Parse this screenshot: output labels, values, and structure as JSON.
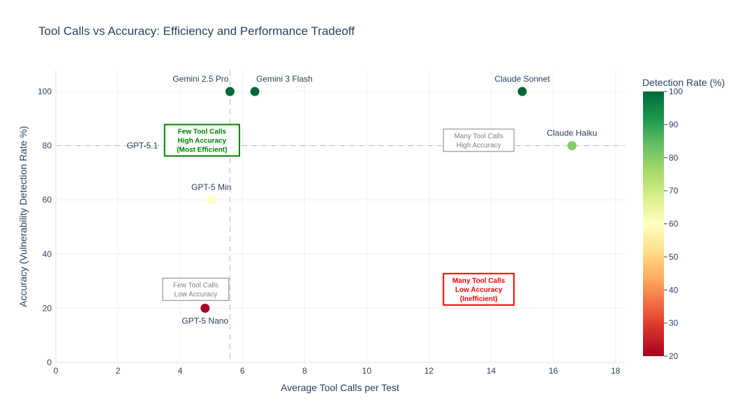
{
  "chart_data": {
    "type": "scatter",
    "title": "Tool Calls vs Accuracy: Efficiency and Performance Tradeoff",
    "xlabel": "Average Tool Calls per Test",
    "ylabel": "Accuracy (Vulnerability Detection Rate %)",
    "xlim": [
      0,
      18.3
    ],
    "ylim": [
      0,
      108
    ],
    "x_ticks": [
      0,
      2,
      4,
      6,
      8,
      10,
      12,
      14,
      16,
      18
    ],
    "y_ticks": [
      0,
      20,
      40,
      60,
      80,
      100
    ],
    "grid": true,
    "points": [
      {
        "label": "Gemini 2.5 Pro",
        "x": 5.6,
        "y": 100,
        "color_value": 100
      },
      {
        "label": "Gemini 3 Flash",
        "x": 6.4,
        "y": 100,
        "color_value": 100
      },
      {
        "label": "Claude Sonnet",
        "x": 15.0,
        "y": 100,
        "color_value": 100
      },
      {
        "label": "Claude Haiku",
        "x": 16.6,
        "y": 80,
        "color_value": 80
      },
      {
        "label": "GPT-5.1",
        "x": 4.0,
        "y": 80,
        "color_value": 80
      },
      {
        "label": "GPT-5 Min",
        "x": 5.0,
        "y": 60,
        "color_value": 60
      },
      {
        "label": "GPT-5 Nano",
        "x": 4.8,
        "y": 20,
        "color_value": 20
      }
    ],
    "reference_lines": {
      "x": 5.6,
      "y": 80
    },
    "colorbar": {
      "title": "Detection Rate (%)",
      "range": [
        20,
        100
      ],
      "ticks": [
        20,
        30,
        40,
        50,
        60,
        70,
        80,
        90,
        100
      ],
      "colorscale": "RdYlGn"
    },
    "annotations": [
      {
        "lines": [
          "Few Tool Calls",
          "High Accuracy",
          "(Most Efficient)"
        ],
        "x": 4.7,
        "y": 82,
        "color": "#008000",
        "bold": true
      },
      {
        "lines": [
          "Many Tool Calls",
          "High Accuracy"
        ],
        "x": 13.6,
        "y": 82,
        "color": "#808080",
        "bold": false
      },
      {
        "lines": [
          "Few Tool Calls",
          "Low Accuracy"
        ],
        "x": 4.5,
        "y": 27,
        "color": "#808080",
        "bold": false
      },
      {
        "lines": [
          "Many Tool Calls",
          "Low Accuracy",
          "(Inefficient)"
        ],
        "x": 13.6,
        "y": 27,
        "color": "#ff0000",
        "bold": true
      }
    ]
  }
}
